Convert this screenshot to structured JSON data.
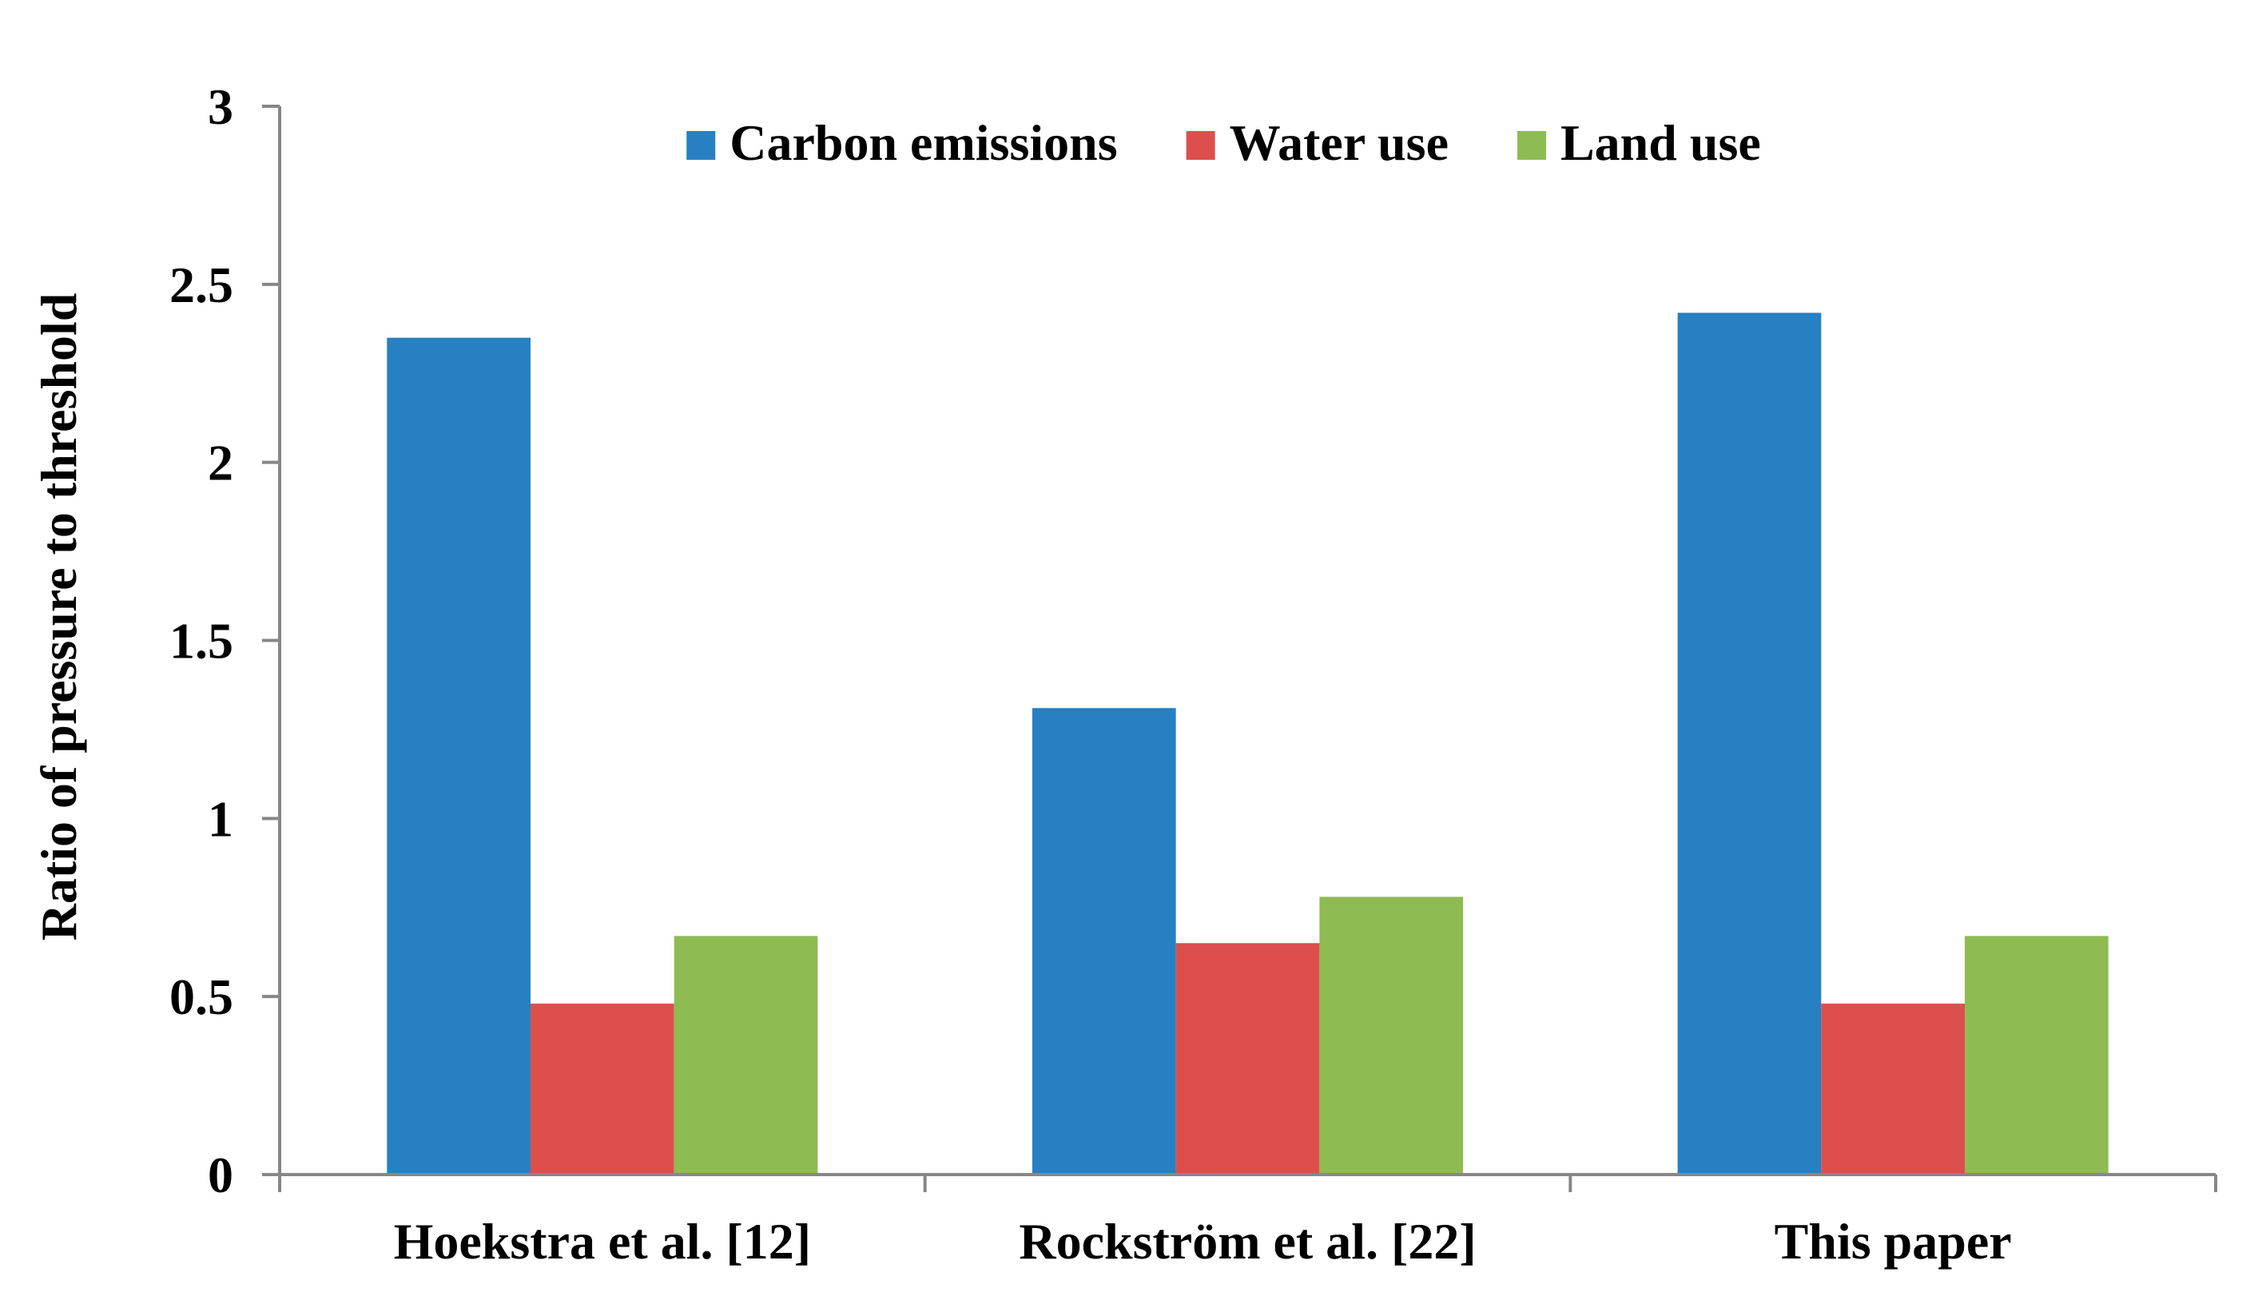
{
  "chart_data": {
    "type": "bar",
    "title": "",
    "xlabel": "",
    "ylabel": "Ratio of pressure to threshold",
    "categories": [
      "Hoekstra et al. [12]",
      "Rockström et al. [22]",
      "This paper"
    ],
    "series": [
      {
        "name": "Carbon emissions",
        "color": "#2780C2",
        "values": [
          2.35,
          1.31,
          2.42
        ]
      },
      {
        "name": "Water use",
        "color": "#DC4F4C",
        "values": [
          0.48,
          0.65,
          0.48
        ]
      },
      {
        "name": "Land use",
        "color": "#8FBC52",
        "values": [
          0.67,
          0.78,
          0.67
        ]
      }
    ],
    "ylim": [
      0,
      3
    ],
    "yticks": [
      "0",
      "0.5",
      "1",
      "1.5",
      "2",
      "2.5",
      "3"
    ],
    "grid": false,
    "legend_position": "top"
  }
}
